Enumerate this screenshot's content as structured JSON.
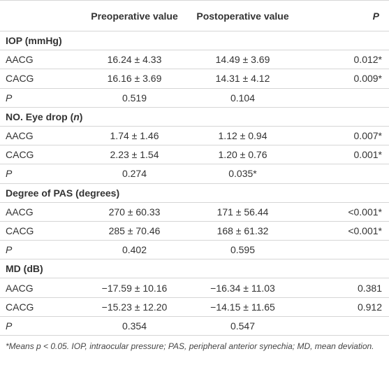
{
  "header": {
    "columns": [
      "Preoperative value",
      "Postoperative value",
      "P"
    ]
  },
  "sections": [
    {
      "title": [
        {
          "text": "IOP (mmHg)",
          "italic": false
        }
      ],
      "rows": [
        [
          "AACG",
          "16.24 ± 4.33",
          "14.49 ± 3.69",
          "0.012*"
        ],
        [
          "CACG",
          "16.16 ± 3.69",
          "14.31 ± 4.12",
          "0.009*"
        ],
        [
          "P",
          "0.519",
          "0.104",
          null
        ]
      ]
    },
    {
      "title": [
        {
          "text": "NO. Eye drop (",
          "italic": false
        },
        {
          "text": "n",
          "italic": true
        },
        {
          "text": ")",
          "italic": false
        }
      ],
      "rows": [
        [
          "AACG",
          "1.74 ± 1.46",
          "1.12 ± 0.94",
          "0.007*"
        ],
        [
          "CACG",
          "2.23 ± 1.54",
          "1.20 ± 0.76",
          "0.001*"
        ],
        [
          "P",
          "0.274",
          "0.035*",
          null
        ]
      ]
    },
    {
      "title": [
        {
          "text": "Degree of PAS (degrees)",
          "italic": false
        }
      ],
      "rows": [
        [
          "AACG",
          "270 ± 60.33",
          "171 ± 56.44",
          "<0.001*"
        ],
        [
          "CACG",
          "285 ± 70.46",
          "168 ± 61.32",
          "<0.001*"
        ],
        [
          "P",
          "0.402",
          "0.595",
          null
        ]
      ]
    },
    {
      "title": [
        {
          "text": "MD (dB)",
          "italic": false
        }
      ],
      "rows": [
        [
          "AACG",
          "−17.59 ± 10.16",
          "−16.34 ± 11.03",
          "0.381"
        ],
        [
          "CACG",
          "−15.23 ± 12.20",
          "−14.15 ± 11.65",
          "0.912"
        ],
        [
          "P",
          "0.354",
          "0.547",
          null
        ]
      ]
    }
  ],
  "footnote": "*Means p < 0.05. IOP, intraocular pressure; PAS, peripheral anterior synechia; MD, mean deviation."
}
